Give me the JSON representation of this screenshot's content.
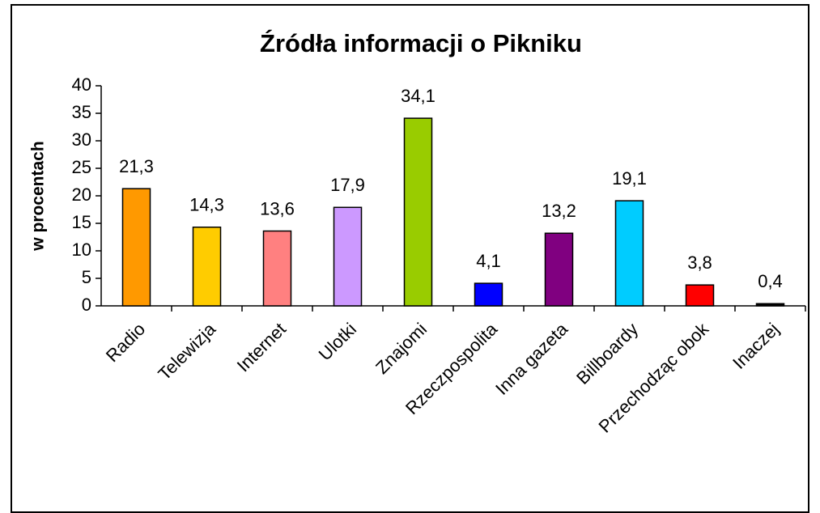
{
  "chart_data": {
    "type": "bar",
    "title": "Źródła informacji o Pikniku",
    "y_label": "w procentach",
    "categories": [
      "Radio",
      "Telewizja",
      "Internet",
      "Ulotki",
      "Znajomi",
      "Rzeczpospolita",
      "Inna gazeta",
      "Billboardy",
      "Przechodząc obok",
      "Inaczej"
    ],
    "values": [
      21.3,
      14.3,
      13.6,
      17.9,
      34.1,
      4.1,
      13.2,
      19.1,
      3.8,
      0.4
    ],
    "value_labels": [
      "21,3",
      "14,3",
      "13,6",
      "17,9",
      "34,1",
      "4,1",
      "13,2",
      "19,1",
      "3,8",
      "0,4"
    ],
    "colors": [
      "#ff9900",
      "#ffcc00",
      "#ff8080",
      "#cc99ff",
      "#99cc00",
      "#0000ff",
      "#800080",
      "#00ccff",
      "#ff0000",
      "#000000"
    ],
    "ylim": [
      0,
      40
    ],
    "yticks": [
      0,
      5,
      10,
      15,
      20,
      25,
      30,
      35,
      40
    ]
  }
}
